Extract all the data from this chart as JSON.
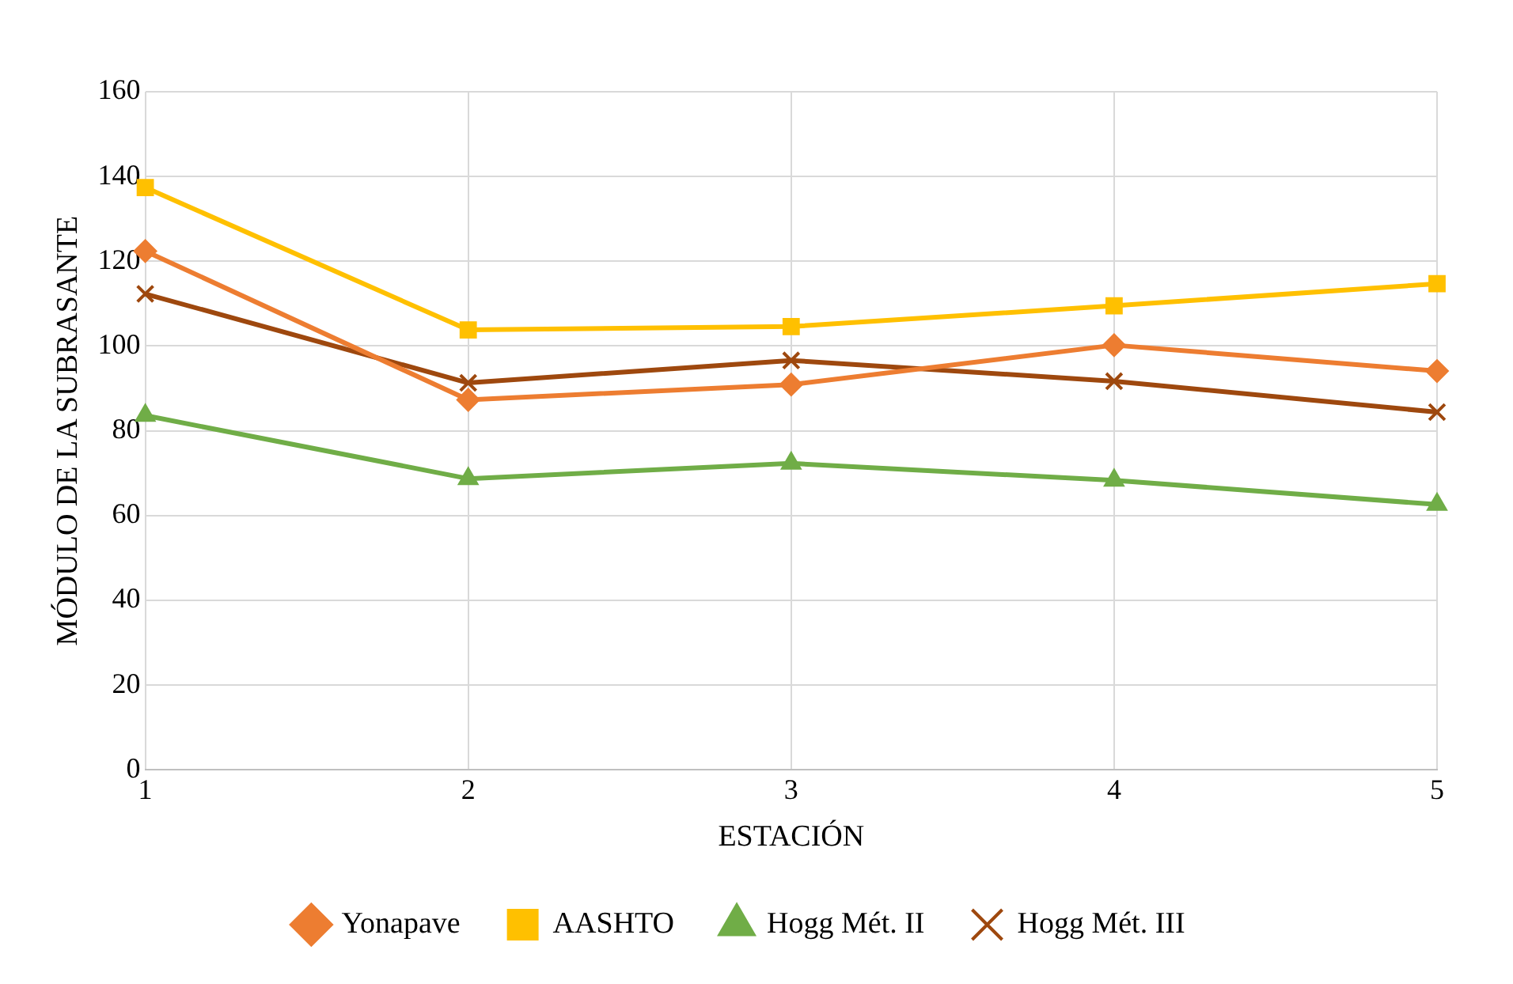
{
  "chart_data": {
    "type": "line",
    "xlabel": "ESTACIÓN",
    "ylabel": "MÓDULO DE LA SUBRASANTE",
    "x": [
      1,
      2,
      3,
      4,
      5
    ],
    "xlim": [
      1,
      5
    ],
    "xticks": [
      1,
      2,
      3,
      4,
      5
    ],
    "ylim": [
      0,
      160
    ],
    "yticks": [
      0,
      20,
      40,
      60,
      80,
      100,
      120,
      140,
      160
    ],
    "grid": true,
    "legend": "bottom",
    "line_style": "solid",
    "series": [
      {
        "name": "Yonapave",
        "color": "#ed7d31",
        "marker": "diamond",
        "values": [
          122.4,
          87.3,
          90.9,
          100.2,
          94.1
        ]
      },
      {
        "name": "AASHTO",
        "color": "#ffc000",
        "marker": "square",
        "values": [
          137.4,
          103.8,
          104.6,
          109.5,
          114.7
        ]
      },
      {
        "name": "Hogg Mét. II",
        "color": "#70ad47",
        "marker": "triangle",
        "values": [
          83.6,
          68.7,
          72.3,
          68.3,
          62.6
        ]
      },
      {
        "name": "Hogg Mét. III",
        "color": "#9e480e",
        "marker": "cross",
        "values": [
          112.3,
          91.3,
          96.6,
          91.7,
          84.4
        ]
      }
    ]
  }
}
